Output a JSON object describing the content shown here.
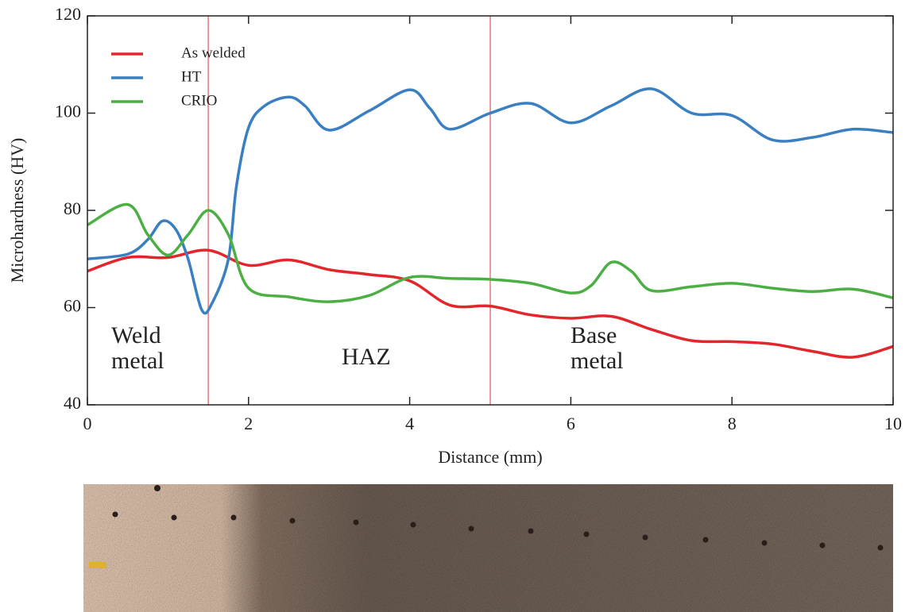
{
  "chart_data": {
    "type": "line",
    "x_label": "Distance (mm)",
    "y_label": "Microhardness (HV)",
    "xlim": [
      0,
      10
    ],
    "xticks": [
      0,
      2,
      4,
      6,
      8,
      10
    ],
    "ylim": [
      40,
      120
    ],
    "yticks": [
      40,
      60,
      80,
      100,
      120
    ],
    "legend": "upper left",
    "vlines": [
      1.5,
      5
    ],
    "vline_color": "#e87878",
    "annotations": [
      [
        "Weld",
        "metal"
      ],
      [
        "HAZ"
      ],
      [
        "Base",
        "metal"
      ]
    ],
    "series": [
      {
        "name": "As welded",
        "color": "#e3262b",
        "x": [
          0,
          0.5,
          1,
          1.5,
          2,
          2.5,
          3,
          3.5,
          4,
          4.5,
          5,
          5.5,
          6,
          6.5,
          7,
          7.5,
          8,
          8.5,
          9,
          9.5,
          10
        ],
        "values": [
          67.5,
          70.3,
          70.3,
          71.8,
          68.7,
          69.8,
          67.8,
          66.8,
          65.5,
          60.5,
          60.3,
          58.5,
          57.8,
          58.2,
          55.5,
          53.2,
          53,
          52.5,
          51,
          49.8,
          52
        ]
      },
      {
        "name": "HT",
        "color": "#3a7fc1",
        "x": [
          0,
          0.5,
          0.75,
          0.93,
          1.1,
          1.25,
          1.42,
          1.55,
          1.75,
          1.85,
          2,
          2.2,
          2.5,
          2.7,
          3,
          3.5,
          4,
          4.25,
          4.5,
          5,
          5.5,
          6,
          6.5,
          7,
          7.5,
          8,
          8.5,
          9,
          9.5,
          10
        ],
        "values": [
          70,
          71,
          74,
          77.8,
          76,
          70,
          59.5,
          61,
          70,
          85,
          97,
          101.5,
          103.3,
          101.5,
          96.5,
          100.5,
          104.8,
          101,
          96.7,
          100,
          102,
          98,
          101.5,
          105,
          100,
          99.5,
          94.5,
          95,
          96.7,
          96
        ]
      },
      {
        "name": "CRIO",
        "color": "#4caf43",
        "x": [
          0,
          0.5,
          0.75,
          1,
          1.25,
          1.5,
          1.75,
          2,
          2.5,
          3,
          3.5,
          4,
          4.5,
          5,
          5.5,
          6,
          6.25,
          6.5,
          6.75,
          7,
          7.5,
          8,
          8.5,
          9,
          9.5,
          10
        ],
        "values": [
          77,
          81.2,
          75,
          70.8,
          75,
          80,
          75,
          64,
          62.2,
          61.2,
          62.5,
          66.2,
          66,
          65.8,
          65,
          63,
          64.5,
          69.3,
          67.5,
          63.5,
          64.3,
          65,
          64,
          63.3,
          63.8,
          62
        ]
      }
    ]
  }
}
